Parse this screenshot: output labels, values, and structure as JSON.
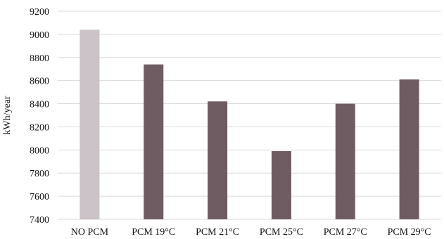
{
  "chart_data": {
    "type": "bar",
    "title": "",
    "xlabel": "",
    "ylabel": "kWh/year",
    "ylim": [
      7400,
      9200
    ],
    "yticks": [
      7400,
      7600,
      7800,
      8000,
      8200,
      8400,
      8600,
      8800,
      9000,
      9200
    ],
    "grid": true,
    "categories": [
      "NO PCM",
      "PCM 19°C",
      "PCM 21°C",
      "PCM 25°C",
      "PCM 27°C",
      "PCM 29°C"
    ],
    "values": [
      9040,
      8740,
      8420,
      7990,
      8400,
      8610
    ],
    "colors": [
      "#cbc3c8",
      "#6f5c63",
      "#6f5c63",
      "#6f5c63",
      "#6f5c63",
      "#6f5c63"
    ]
  }
}
